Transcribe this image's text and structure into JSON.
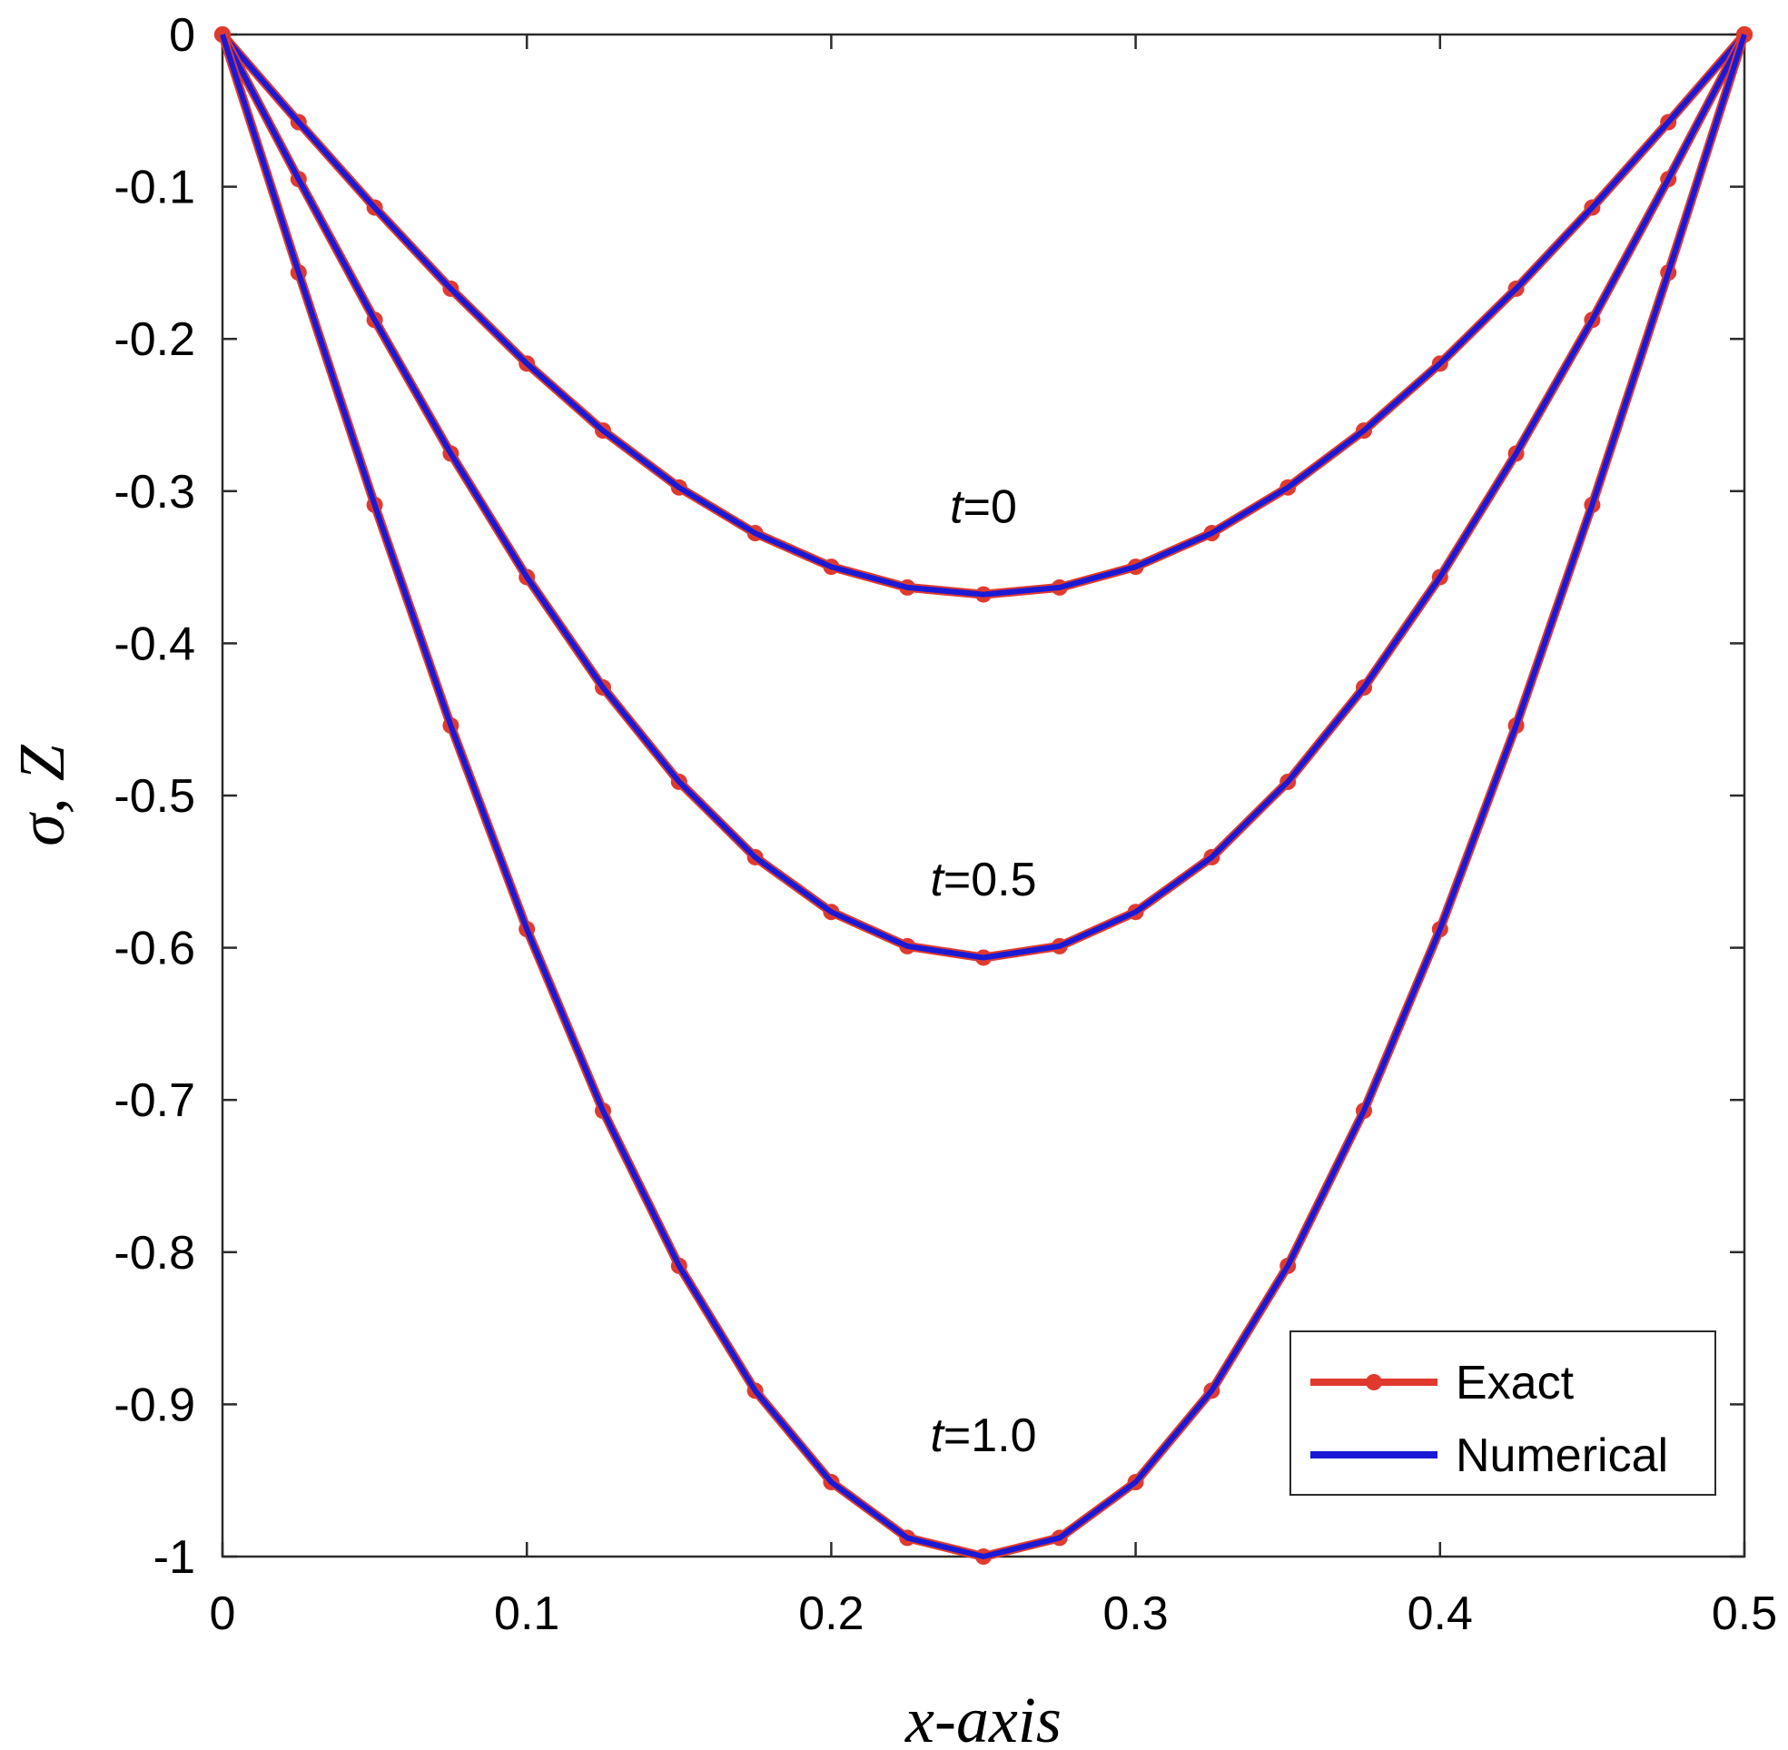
{
  "chart_data": {
    "type": "line",
    "title": "",
    "xlabel": "x-axis",
    "ylabel": "σ, Z",
    "xlim": [
      0,
      0.5
    ],
    "ylim": [
      -1,
      0
    ],
    "x_ticks": [
      0,
      0.1,
      0.2,
      0.3,
      0.4,
      0.5
    ],
    "x_tick_labels": [
      "0",
      "0.1",
      "0.2",
      "0.3",
      "0.4",
      "0.5"
    ],
    "y_ticks": [
      0,
      -0.1,
      -0.2,
      -0.3,
      -0.4,
      -0.5,
      -0.6,
      -0.7,
      -0.8,
      -0.9,
      -1
    ],
    "y_tick_labels": [
      "0",
      "-0.1",
      "-0.2",
      "-0.3",
      "-0.4",
      "-0.5",
      "-0.6",
      "-0.7",
      "-0.8",
      "-0.9",
      "-1"
    ],
    "grid": false,
    "legend_position": "bottom-right",
    "legend": [
      {
        "label": "Exact",
        "color": "#e03a2f",
        "marker": "circle"
      },
      {
        "label": "Numerical",
        "color": "#1a1ad6",
        "marker": "none"
      }
    ],
    "x": [
      0,
      0.025,
      0.05,
      0.075,
      0.1,
      0.125,
      0.15,
      0.175,
      0.2,
      0.225,
      0.25,
      0.275,
      0.3,
      0.325,
      0.35,
      0.375,
      0.4,
      0.425,
      0.45,
      0.475,
      0.5
    ],
    "curves": [
      {
        "annotation_var": "t",
        "annotation_value": "=0",
        "annotation_at": [
          0.25,
          -0.31
        ],
        "values": [
          0,
          -0.0576,
          -0.1137,
          -0.167,
          -0.2162,
          -0.2602,
          -0.2976,
          -0.3276,
          -0.3497,
          -0.3633,
          -0.3679,
          -0.3633,
          -0.3497,
          -0.3276,
          -0.2976,
          -0.2602,
          -0.2162,
          -0.167,
          -0.1137,
          -0.0576,
          0
        ]
      },
      {
        "annotation_var": "t",
        "annotation_value": "=0.5",
        "annotation_at": [
          0.25,
          -0.555
        ],
        "values": [
          0,
          -0.095,
          -0.1875,
          -0.2753,
          -0.3565,
          -0.429,
          -0.491,
          -0.5405,
          -0.5765,
          -0.599,
          -0.6065,
          -0.599,
          -0.5765,
          -0.5405,
          -0.491,
          -0.429,
          -0.3565,
          -0.2753,
          -0.1875,
          -0.095,
          0
        ]
      },
      {
        "annotation_var": "t",
        "annotation_value": "=1.0",
        "annotation_at": [
          0.25,
          -0.92
        ],
        "values": [
          0,
          -0.1564,
          -0.309,
          -0.454,
          -0.5878,
          -0.7071,
          -0.809,
          -0.891,
          -0.9511,
          -0.9877,
          -1.0,
          -0.9877,
          -0.9511,
          -0.891,
          -0.809,
          -0.7071,
          -0.5878,
          -0.454,
          -0.309,
          -0.1564,
          0
        ]
      }
    ],
    "colors": {
      "exact": "#e03a2f",
      "numerical": "#1a1ad6",
      "axes": "#2b2b2b"
    }
  }
}
